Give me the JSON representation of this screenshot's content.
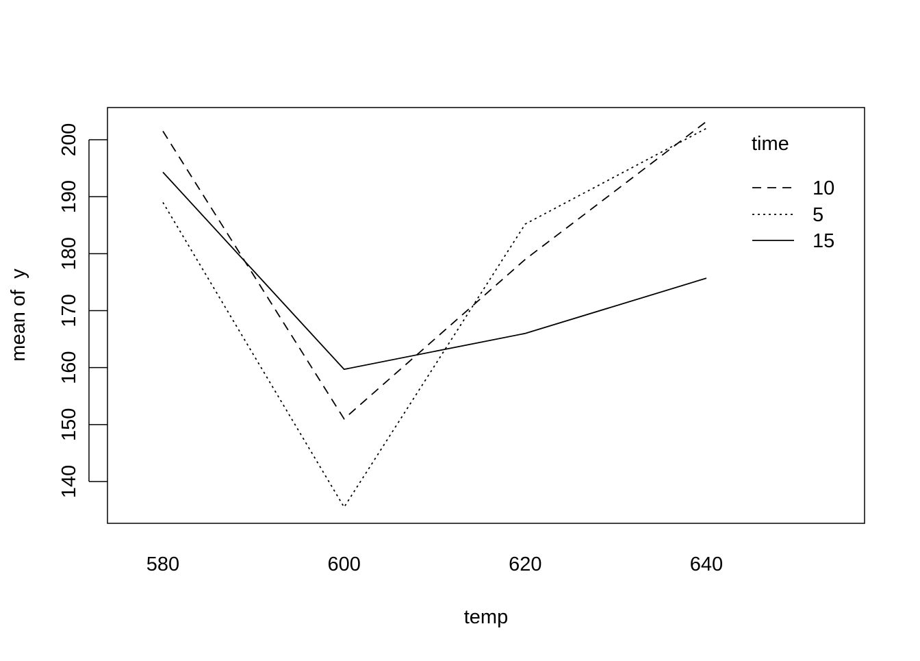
{
  "chart_data": {
    "type": "line",
    "title": "",
    "xlabel": "temp",
    "ylabel": "mean of  y",
    "x": [
      580,
      600,
      620,
      640
    ],
    "x_ticks": [
      "580",
      "600",
      "620",
      "640"
    ],
    "y_ticks": [
      "140",
      "150",
      "160",
      "170",
      "180",
      "190",
      "200"
    ],
    "ylim": [
      133.4,
      206.0
    ],
    "legend": {
      "title": "time",
      "position": "top-right"
    },
    "series": [
      {
        "name": "10",
        "line_style": "dashed",
        "values": [
          201.5,
          151.0,
          179.0,
          203.2
        ]
      },
      {
        "name": "5",
        "line_style": "dotted",
        "values": [
          189.0,
          135.5,
          185.2,
          202.0
        ]
      },
      {
        "name": "15",
        "line_style": "solid",
        "values": [
          194.3,
          159.7,
          166.0,
          175.7
        ]
      }
    ],
    "colors": {
      "line": "#000000",
      "frame": "#000000",
      "background": "#ffffff"
    },
    "grid": false
  }
}
